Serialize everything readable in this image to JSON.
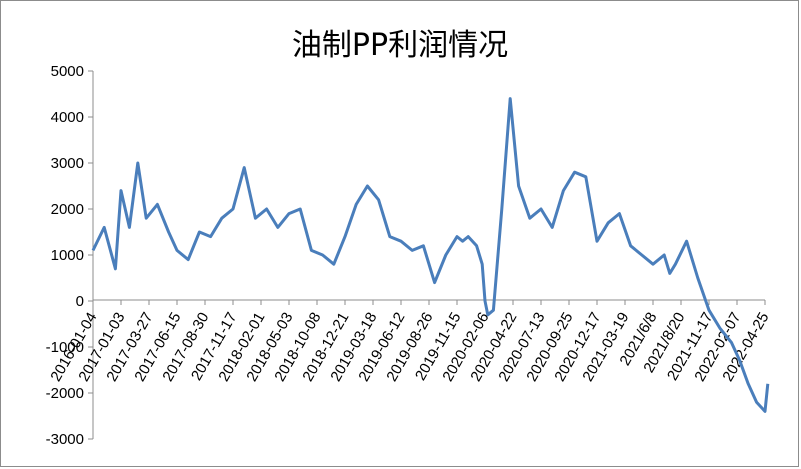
{
  "chart_data": {
    "type": "line",
    "title": "油制PP利润情况",
    "xlabel": "",
    "ylabel": "",
    "ylim": [
      -3000,
      5000
    ],
    "yticks": [
      -3000,
      -2000,
      -1000,
      0,
      1000,
      2000,
      3000,
      4000,
      5000
    ],
    "x_tick_labels": [
      "2016-01-04",
      "2017-01-03",
      "2017-03-27",
      "2017-06-15",
      "2017-08-30",
      "2017-11-17",
      "2018-02-01",
      "2018-05-03",
      "2018-10-08",
      "2018-12-21",
      "2019-03-18",
      "2019-06-12",
      "2019-08-26",
      "2019-11-15",
      "2020-02-06",
      "2020-04-22",
      "2020-07-13",
      "2020-09-25",
      "2020-12-17",
      "2021-03-19",
      "2021/6/8",
      "2021/8/20",
      "2021-11-17",
      "2022-02-07",
      "2022-04-25"
    ],
    "grid": false,
    "legend": "none",
    "line_color": "#4a7ebb",
    "series": [
      {
        "name": "",
        "x": [
          0,
          0.4,
          0.8,
          1.0,
          1.3,
          1.6,
          1.9,
          2.3,
          2.7,
          3.0,
          3.4,
          3.8,
          4.2,
          4.6,
          5.0,
          5.4,
          5.8,
          6.2,
          6.6,
          7.0,
          7.4,
          7.8,
          8.2,
          8.6,
          9.0,
          9.4,
          9.8,
          10.2,
          10.6,
          11.0,
          11.4,
          11.8,
          12.2,
          12.6,
          13.0,
          13.2,
          13.4,
          13.7,
          13.9,
          14.0,
          14.1,
          14.3,
          14.6,
          14.9,
          15.2,
          15.6,
          16.0,
          16.4,
          16.8,
          17.2,
          17.6,
          18.0,
          18.4,
          18.8,
          19.2,
          19.6,
          20.0,
          20.4,
          20.6,
          20.8,
          21.2,
          21.6,
          22.0,
          22.4,
          22.8,
          23.1,
          23.4,
          23.7,
          24.0,
          24.1
        ],
        "values": [
          1100,
          1600,
          700,
          2400,
          1600,
          3000,
          1800,
          2100,
          1500,
          1100,
          900,
          1500,
          1400,
          1800,
          2000,
          2900,
          1800,
          2000,
          1600,
          1900,
          2000,
          1100,
          1000,
          800,
          1400,
          2100,
          2500,
          2200,
          1400,
          1300,
          1100,
          1200,
          400,
          1000,
          1400,
          1300,
          1400,
          1200,
          800,
          0,
          -300,
          -200,
          2000,
          4400,
          2500,
          1800,
          2000,
          1600,
          2400,
          2800,
          2700,
          1300,
          1700,
          1900,
          1200,
          1000,
          800,
          1000,
          600,
          800,
          1300,
          500,
          -200,
          -600,
          -900,
          -1300,
          -1800,
          -2200,
          -2400,
          -1800
        ]
      }
    ]
  }
}
